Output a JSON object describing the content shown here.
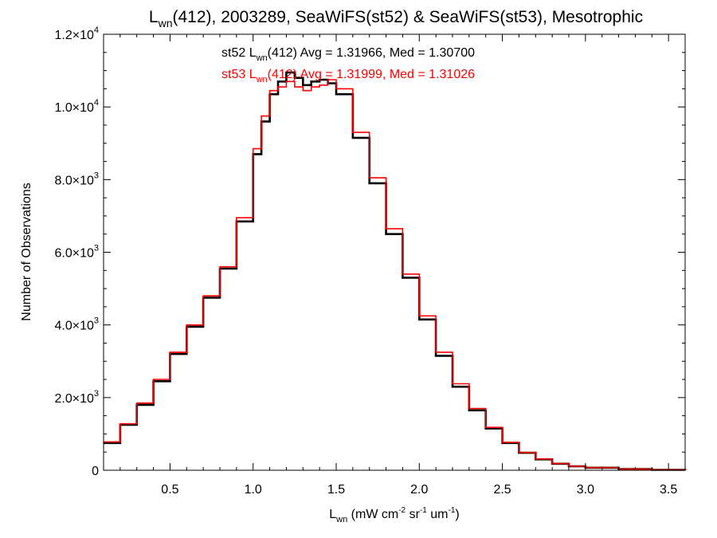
{
  "chart_data": {
    "type": "line",
    "title": {
      "main": "L",
      "sub": "wn",
      "rest": "(412), 2003289, SeaWiFS(st52) & SeaWiFS(st53), Mesotrophic"
    },
    "xlabel": {
      "main": "L",
      "sub": "wn",
      "units": [
        {
          "t": " (mW cm",
          "s": false
        },
        {
          "t": "-2",
          "s": true
        },
        {
          "t": " sr",
          "s": false
        },
        {
          "t": "-1",
          "s": true
        },
        {
          "t": " um",
          "s": false
        },
        {
          "t": "-1",
          "s": true
        },
        {
          "t": ")",
          "s": false
        }
      ]
    },
    "ylabel": "Number of Observations",
    "xlim": [
      0.1,
      3.6
    ],
    "ylim": [
      0,
      12000
    ],
    "x_ticks": [
      {
        "value": 0.5,
        "label": "0.5"
      },
      {
        "value": 1.0,
        "label": "1.0"
      },
      {
        "value": 1.5,
        "label": "1.5"
      },
      {
        "value": 2.0,
        "label": "2.0"
      },
      {
        "value": 2.5,
        "label": "2.5"
      },
      {
        "value": 3.0,
        "label": "3.0"
      },
      {
        "value": 3.5,
        "label": "3.5"
      }
    ],
    "y_ticks": [
      {
        "value": 0,
        "mantissa": "0",
        "exponent": ""
      },
      {
        "value": 2000,
        "mantissa": "2.0×10",
        "exponent": "3"
      },
      {
        "value": 4000,
        "mantissa": "4.0×10",
        "exponent": "3"
      },
      {
        "value": 6000,
        "mantissa": "6.0×10",
        "exponent": "3"
      },
      {
        "value": 8000,
        "mantissa": "8.0×10",
        "exponent": "3"
      },
      {
        "value": 10000,
        "mantissa": "1.0×10",
        "exponent": "4"
      },
      {
        "value": 12000,
        "mantissa": "1.2×10",
        "exponent": "4"
      }
    ],
    "x": [
      0.1,
      0.2,
      0.3,
      0.4,
      0.5,
      0.6,
      0.7,
      0.8,
      0.9,
      1.0,
      1.05,
      1.1,
      1.15,
      1.2,
      1.25,
      1.3,
      1.35,
      1.4,
      1.45,
      1.5,
      1.6,
      1.7,
      1.8,
      1.9,
      2.0,
      2.1,
      2.2,
      2.3,
      2.4,
      2.5,
      2.6,
      2.7,
      2.8,
      2.9,
      3.0,
      3.2,
      3.4,
      3.6
    ],
    "series": [
      {
        "name": "st52",
        "color": "#000000",
        "values": [
          750,
          1250,
          1800,
          2450,
          3200,
          3950,
          4750,
          5550,
          6850,
          8700,
          9600,
          10350,
          10700,
          10950,
          10800,
          10600,
          10700,
          10750,
          10650,
          10350,
          9150,
          7900,
          6500,
          5300,
          4150,
          3150,
          2300,
          1650,
          1150,
          750,
          480,
          300,
          180,
          110,
          70,
          30,
          10,
          0
        ]
      },
      {
        "name": "st53",
        "color": "#ff0000",
        "values": [
          780,
          1280,
          1850,
          2500,
          3250,
          4000,
          4800,
          5600,
          6950,
          8850,
          9750,
          10450,
          10550,
          10700,
          10550,
          10450,
          10550,
          10600,
          10750,
          10500,
          9300,
          8050,
          6650,
          5400,
          4250,
          3250,
          2380,
          1700,
          1180,
          770,
          490,
          310,
          185,
          115,
          72,
          30,
          10,
          0
        ]
      }
    ],
    "annotations": [
      {
        "color": "#000000",
        "pre": "st52 L",
        "sub": "wn",
        "post": "(412) Avg = 1.31966, Med = 1.30700"
      },
      {
        "color": "#ff0000",
        "pre": "st53 L",
        "sub": "wn",
        "post": "(412) Avg = 1.31999, Med = 1.31026"
      }
    ]
  }
}
